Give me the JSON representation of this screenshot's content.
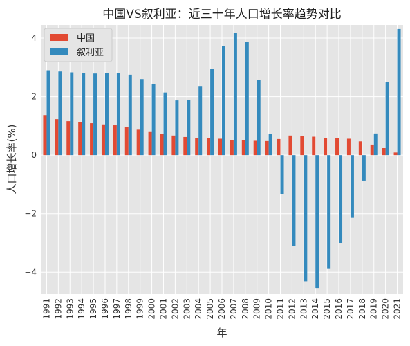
{
  "chart_data": {
    "type": "bar",
    "title": "中国VS叙利亚：近三十年人口增长率趋势对比",
    "xlabel": "年",
    "ylabel": "人口增长率(%)",
    "ylim": [
      -4.75,
      4.45
    ],
    "yticks": [
      -4,
      -2,
      0,
      2,
      4
    ],
    "grid": true,
    "legend_position": "top-left",
    "categories": [
      "1991",
      "1992",
      "1993",
      "1994",
      "1995",
      "1996",
      "1997",
      "1998",
      "1999",
      "2000",
      "2001",
      "2002",
      "2003",
      "2004",
      "2005",
      "2006",
      "2007",
      "2008",
      "2009",
      "2010",
      "2011",
      "2012",
      "2013",
      "2014",
      "2015",
      "2016",
      "2017",
      "2018",
      "2019",
      "2020",
      "2021"
    ],
    "series": [
      {
        "name": "中国",
        "color": "#e24a33",
        "values": [
          1.37,
          1.23,
          1.16,
          1.13,
          1.09,
          1.05,
          1.02,
          0.95,
          0.87,
          0.79,
          0.73,
          0.67,
          0.62,
          0.59,
          0.59,
          0.56,
          0.52,
          0.51,
          0.49,
          0.48,
          0.55,
          0.67,
          0.65,
          0.63,
          0.58,
          0.59,
          0.56,
          0.47,
          0.36,
          0.24,
          0.09
        ]
      },
      {
        "name": "叙利亚",
        "color": "#348abd",
        "values": [
          2.9,
          2.86,
          2.83,
          2.8,
          2.79,
          2.8,
          2.8,
          2.75,
          2.6,
          2.44,
          2.14,
          1.87,
          1.89,
          2.34,
          2.94,
          3.72,
          4.18,
          3.86,
          2.58,
          0.72,
          -1.33,
          -3.1,
          -4.31,
          -4.54,
          -3.89,
          -3.0,
          -2.14,
          -0.87,
          0.74,
          2.49,
          4.31
        ]
      }
    ]
  }
}
